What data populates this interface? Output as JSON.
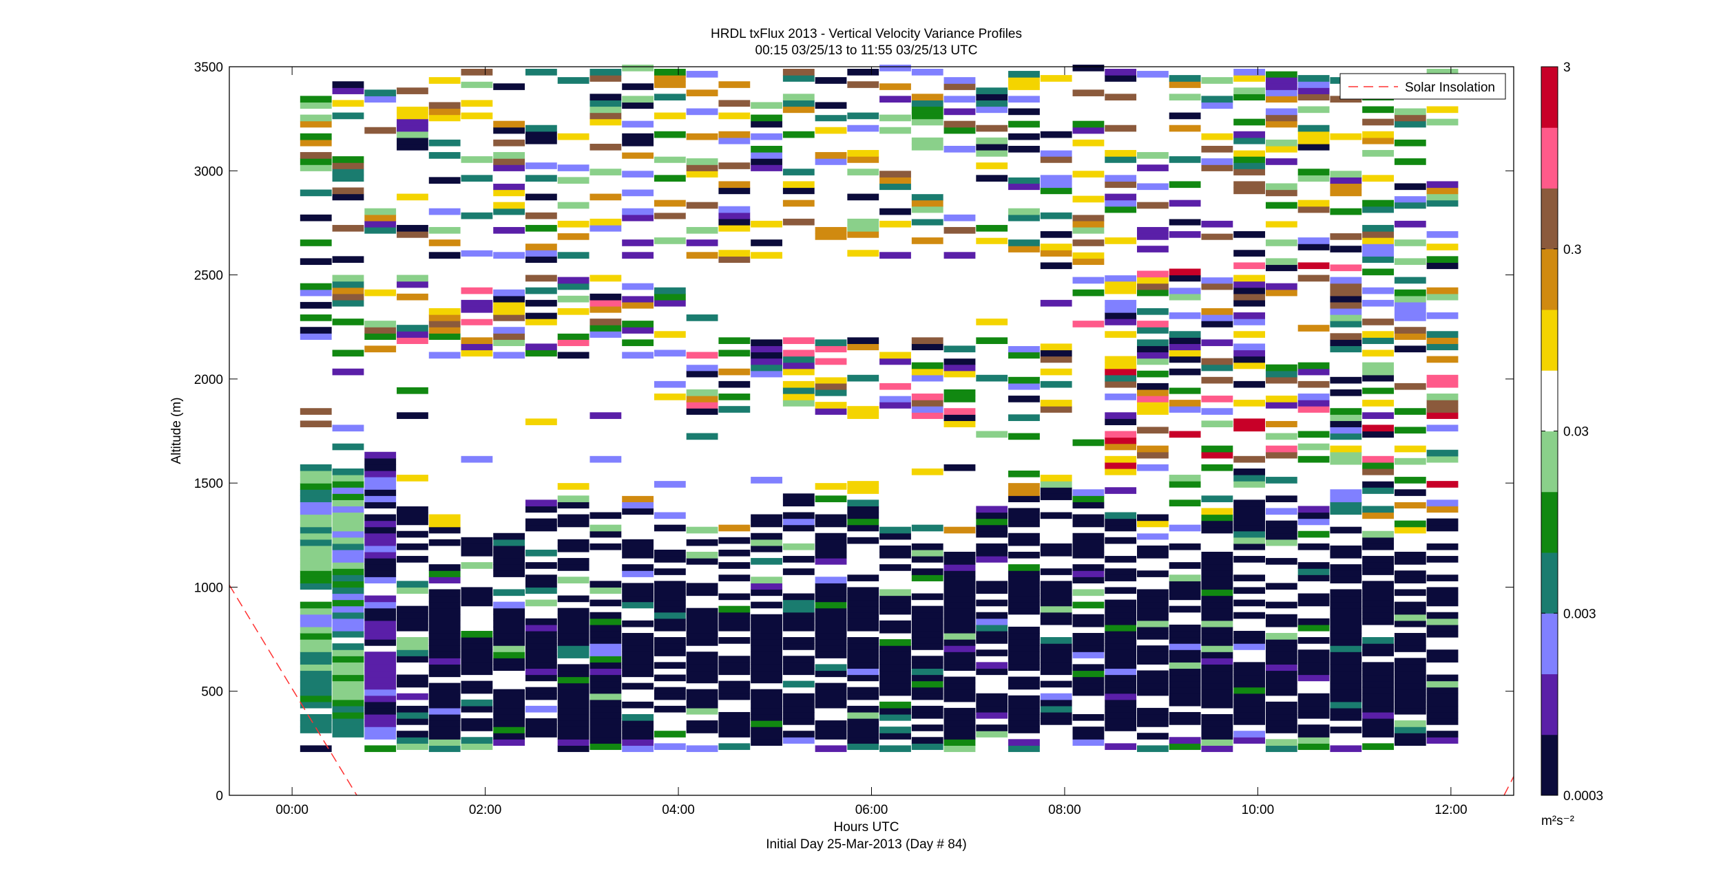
{
  "chart_data": {
    "type": "heatmap",
    "title": "HRDL txFlux 2013 - Vertical Velocity Variance Profiles",
    "subtitle": "00:15 03/25/13 to 11:55 03/25/13  UTC",
    "xlabel": "Hours UTC",
    "xlabel2": "Initial Day 25-Mar-2013 (Day # 84)",
    "ylabel": "Altitude (m)",
    "xlim": [
      -0.65,
      12.65
    ],
    "ylim": [
      0,
      3500
    ],
    "x_ticks": [
      0,
      2,
      4,
      6,
      8,
      10,
      12
    ],
    "x_tick_labels": [
      "00:00",
      "02:00",
      "04:00",
      "06:00",
      "08:00",
      "10:00",
      "12:00"
    ],
    "y_ticks": [
      0,
      500,
      1000,
      1500,
      2000,
      2500,
      3000,
      3500
    ],
    "y_tick_labels": [
      "0",
      "500",
      "1000",
      "1500",
      "2000",
      "2500",
      "3000",
      "3500"
    ],
    "grid": false,
    "legend": {
      "position": "top-right",
      "entries": [
        "Solar Insolation"
      ]
    },
    "colorbar": {
      "scale": "log",
      "range": [
        0.0003,
        3
      ],
      "tick_labels": [
        "0.0003",
        "0.003",
        "0.03",
        "0.3",
        "3"
      ],
      "unit": "m²s⁻²",
      "colors": [
        "#0b0b3b",
        "#5a1fa8",
        "#8080ff",
        "#1a7c6f",
        "#118811",
        "#8ad08a",
        "#ffffff",
        "#f4d400",
        "#d08a10",
        "#8b5a3c",
        "#ff5a8a",
        "#c80028"
      ]
    },
    "time_start_hours": 0.25,
    "time_step_hours": 0.3333,
    "altitude_start_m": 225,
    "altitude_step_m": 30,
    "solar_insolation": {
      "style": "red dashed",
      "segments": [
        {
          "x": [
            -0.65,
            0.67
          ],
          "y": [
            1010,
            0
          ]
        },
        {
          "x": [
            12.55,
            12.65
          ],
          "y": [
            0,
            90
          ]
        }
      ]
    }
  }
}
